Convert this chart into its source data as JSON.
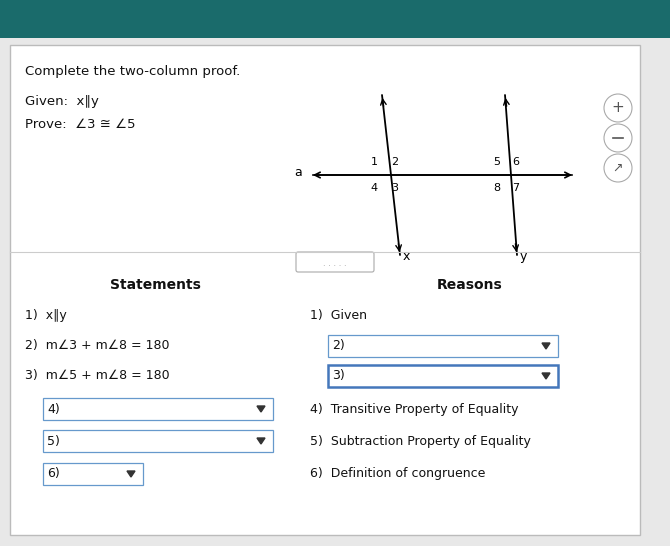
{
  "header_color": "#1a6b6b",
  "bg_color": "#e8e8e8",
  "white": "#ffffff",
  "border_color": "#bbbbbb",
  "blue_border": "#4477bb",
  "text_color": "#111111",
  "title": "Complete the two-column proof.",
  "given": "Given:  x∥y",
  "prove": "Prove:  ∠3 ≅ ∠5",
  "statements_header": "Statements",
  "reasons_header": "Reasons",
  "rows": [
    {
      "stmt": "1)  x∥y",
      "reason": "1)  Given",
      "stmt_box": false,
      "reason_box": false
    },
    {
      "stmt": "2)  m∠3 + m∠8 = 180",
      "reason": "2)",
      "stmt_box": false,
      "reason_box": true,
      "reason_blue": false
    },
    {
      "stmt": "3)  m∠5 + m∠8 = 180",
      "reason": "3)",
      "stmt_box": false,
      "reason_box": true,
      "reason_blue": true
    },
    {
      "stmt": "4)",
      "reason": "4)  Transitive Property of Equality",
      "stmt_box": true,
      "reason_box": false,
      "stmt_short": false
    },
    {
      "stmt": "5)",
      "reason": "5)  Subtraction Property of Equality",
      "stmt_box": true,
      "reason_box": false,
      "stmt_short": false
    },
    {
      "stmt": "6)",
      "reason": "6)  Definition of congruence",
      "stmt_box": true,
      "reason_box": false,
      "stmt_short": true
    }
  ]
}
